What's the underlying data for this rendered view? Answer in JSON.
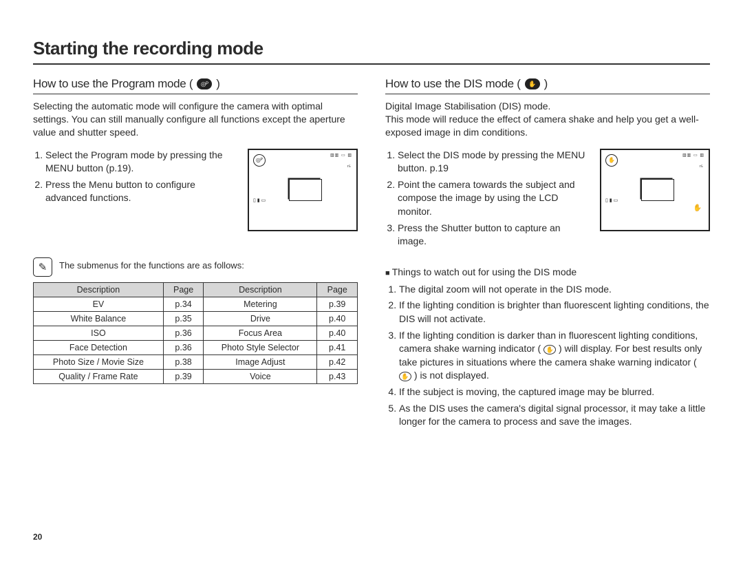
{
  "page_number": "20",
  "page_title": "Starting the recording mode",
  "left": {
    "heading_pre": "How to use the Program mode (",
    "heading_post": ")",
    "mode_icon_glyph": "◎ᴾ",
    "intro": "Selecting the automatic mode will configure the camera with optimal settings. You can still manually configure all functions except the aperture value and shutter speed.",
    "steps": [
      "Select the Program mode by pressing the MENU button (p.19).",
      "Press the Menu button to configure advanced functions."
    ],
    "lcd": {
      "topleft": "◎ᴾ",
      "topbar": "▥▥ ▭ ▥",
      "topg": "ʳ⁵",
      "side": "▯\n▮\n▭"
    },
    "note_text": "The submenus for the functions are as follows:",
    "table": {
      "headers": [
        "Description",
        "Page",
        "Description",
        "Page"
      ],
      "rows": [
        [
          "EV",
          "p.34",
          "Metering",
          "p.39"
        ],
        [
          "White Balance",
          "p.35",
          "Drive",
          "p.40"
        ],
        [
          "ISO",
          "p.36",
          "Focus Area",
          "p.40"
        ],
        [
          "Face Detection",
          "p.36",
          "Photo Style Selector",
          "p.41"
        ],
        [
          "Photo Size / Movie Size",
          "p.38",
          "Image Adjust",
          "p.42"
        ],
        [
          "Quality / Frame Rate",
          "p.39",
          "Voice",
          "p.43"
        ]
      ]
    }
  },
  "right": {
    "heading_pre": "How to use the DIS mode (",
    "heading_post": ")",
    "mode_icon_glyph": "✋",
    "intro": "Digital Image Stabilisation (DIS) mode.\nThis mode will reduce the effect of camera shake and help you get a well-exposed image in dim conditions.",
    "steps": [
      "Select the DIS mode by pressing the MENU button. p.19",
      "Point the camera towards the subject and compose the image by using the LCD monitor.",
      "Press the Shutter button to capture an image."
    ],
    "lcd": {
      "topleft": "✋",
      "topbar": "▥▥ ▭ ▥",
      "topg": "ʳ⁵",
      "side": "▯\n▮\n▭",
      "hand": "✋"
    },
    "subhead": "Things to watch out for using the DIS mode",
    "notes": {
      "n1": "The digital zoom will not operate in the DIS mode.",
      "n2": "If the lighting condition is brighter than fluorescent lighting conditions, the DIS will not activate.",
      "n3a": "If the lighting condition is darker than in fluorescent lighting conditions, camera shake warning indicator ( ",
      "n3b": " ) will display. For best results only take pictures in situations where the camera shake warning indicator ( ",
      "n3c": " ) is not displayed.",
      "n4": "If the subject is moving, the captured image may be blurred.",
      "n5": "As the DIS uses the camera's digital signal processor, it may take a little longer for the camera to process and save the images.",
      "hand_glyph": "✋"
    }
  }
}
